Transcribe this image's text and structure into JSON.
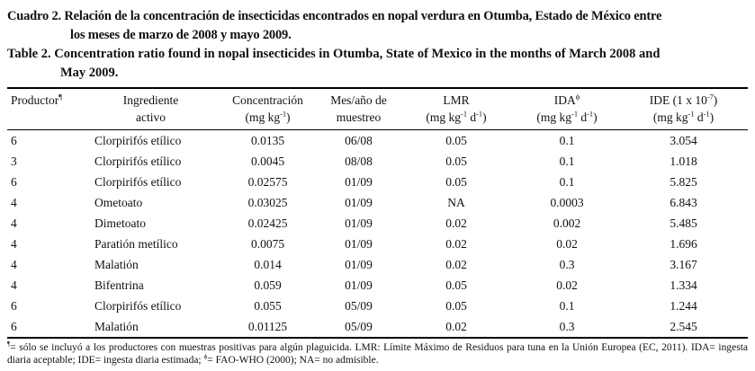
{
  "titles": {
    "spanish_lines": [
      "Cuadro 2. Relación de la concentración de insecticidas encontrados en nopal verdura en Otumba, Estado de México entre",
      "los meses de marzo de 2008 y mayo 2009."
    ],
    "english_lines": [
      "Table 2. Concentration ratio found in nopal insecticides in Otumba, State of Mexico in the months of March 2008 and",
      "May 2009."
    ]
  },
  "table": {
    "headers": [
      {
        "line1": "Productor^{¶}",
        "line2": ""
      },
      {
        "line1": "Ingrediente",
        "line2": "activo"
      },
      {
        "line1": "Concentración",
        "line2": "(mg kg^{-1})"
      },
      {
        "line1": "Mes/año de",
        "line2": "muestreo"
      },
      {
        "line1": "LMR",
        "line2": "(mg kg^{-1} d^{-1})"
      },
      {
        "line1": "IDA^{ϕ}",
        "line2": "(mg kg^{-1} d^{-1})"
      },
      {
        "line1": "IDE (1 x 10^{-7})",
        "line2": "(mg kg^{-1} d^{-1})"
      }
    ],
    "rows": [
      [
        "6",
        "Clorpirifós etílico",
        "0.0135",
        "06/08",
        "0.05",
        "0.1",
        "3.054"
      ],
      [
        "3",
        "Clorpirifós etílico",
        "0.0045",
        "08/08",
        "0.05",
        "0.1",
        "1.018"
      ],
      [
        "6",
        "Clorpirifós etílico",
        "0.02575",
        "01/09",
        "0.05",
        "0.1",
        "5.825"
      ],
      [
        "4",
        "Ometoato",
        "0.03025",
        "01/09",
        "NA",
        "0.0003",
        "6.843"
      ],
      [
        "4",
        "Dimetoato",
        "0.02425",
        "01/09",
        "0.02",
        "0.002",
        "5.485"
      ],
      [
        "4",
        "Paratión metílico",
        "0.0075",
        "01/09",
        "0.02",
        "0.02",
        "1.696"
      ],
      [
        "4",
        "Malatión",
        "0.014",
        "01/09",
        "0.02",
        "0.3",
        "3.167"
      ],
      [
        "4",
        "Bifentrina",
        "0.059",
        "01/09",
        "0.05",
        "0.02",
        "1.334"
      ],
      [
        "6",
        "Clorpirifós etílico",
        "0.055",
        "05/09",
        "0.05",
        "0.1",
        "1.244"
      ],
      [
        "6",
        "Malatión",
        "0.01125",
        "05/09",
        "0.02",
        "0.3",
        "2.545"
      ]
    ]
  },
  "footnote": "^{¶}= sólo se incluyó a los productores con muestras positivas para algún plaguicida. LMR: Límite Máximo de Residuos para tuna en la Unión Europea (EC, 2011). IDA= ingesta diaria aceptable; IDE= ingesta diaria estimada; ^{ϕ}= FAO-WHO (2000); NA= no admisible.",
  "colors": {
    "background": "#ffffff",
    "text": "#111111",
    "border": "#000000"
  }
}
